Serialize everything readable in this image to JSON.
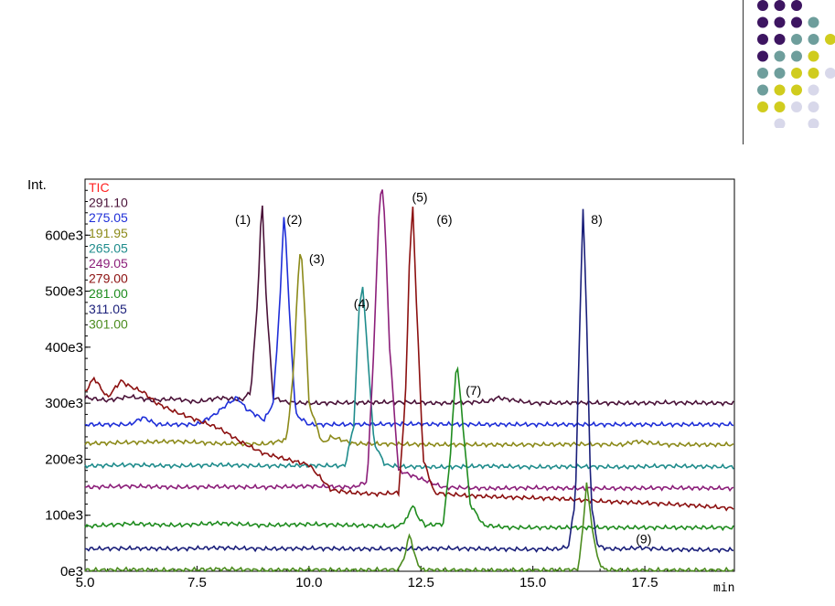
{
  "decoration": {
    "dot_colors": {
      "purple": "#3d1561",
      "teal": "#6e9e9c",
      "yellow": "#d0cc1e",
      "lavender": "#d8d8ea"
    },
    "rule_color": "#333333"
  },
  "chart_data": {
    "type": "line",
    "ylabel": "Int.",
    "xlabel": "min",
    "xlim": [
      5.0,
      19.5
    ],
    "ylim": [
      0,
      700000
    ],
    "x_ticks": [
      "5.0",
      "7.5",
      "10.0",
      "12.5",
      "15.0",
      "17.5"
    ],
    "x_tick_values": [
      5.0,
      7.5,
      10.0,
      12.5,
      15.0,
      17.5
    ],
    "y_ticks": [
      "0e3",
      "100e3",
      "200e3",
      "300e3",
      "400e3",
      "500e3",
      "600e3"
    ],
    "y_tick_values": [
      0,
      100000,
      200000,
      300000,
      400000,
      500000,
      600000
    ],
    "legend_position": "top-left",
    "series": [
      {
        "name": "TIC",
        "color": "#ff2020",
        "x": [],
        "y": []
      },
      {
        "name": "291.10",
        "color": "#4a1238",
        "baseline": 300000,
        "x": [
          5.0,
          5.5,
          6.0,
          6.5,
          7.0,
          7.5,
          8.0,
          8.5,
          8.7,
          8.85,
          8.95,
          9.05,
          9.2,
          9.5,
          10.0,
          11.0,
          12.0,
          13.0,
          14.0,
          14.2,
          15.0,
          16.0,
          17.0,
          18.0,
          19.5
        ],
        "y": [
          310000,
          305000,
          312000,
          305000,
          308000,
          302000,
          310000,
          306000,
          320000,
          480000,
          670000,
          480000,
          310000,
          302000,
          300000,
          301000,
          302000,
          300000,
          303000,
          310000,
          300000,
          301000,
          300000,
          301000,
          300000
        ]
      },
      {
        "name": "275.05",
        "color": "#1f2fd8",
        "baseline": 262000,
        "x": [
          5.0,
          6.0,
          6.3,
          6.6,
          7.5,
          7.9,
          8.2,
          8.4,
          8.6,
          9.0,
          9.2,
          9.35,
          9.45,
          9.55,
          9.7,
          10.0,
          11.0,
          12.0,
          14.0,
          16.0,
          18.0,
          19.5
        ],
        "y": [
          262000,
          262000,
          275000,
          262000,
          262000,
          280000,
          300000,
          310000,
          290000,
          270000,
          300000,
          480000,
          650000,
          480000,
          280000,
          262000,
          262000,
          263000,
          262000,
          262000,
          262000,
          262000
        ]
      },
      {
        "name": "191.95",
        "color": "#8c8a1a",
        "baseline": 226000,
        "x": [
          5.0,
          6.0,
          7.0,
          8.0,
          9.0,
          9.5,
          9.65,
          9.75,
          9.82,
          9.9,
          10.0,
          10.3,
          10.5,
          11.0,
          12.0,
          13.0,
          14.0,
          15.0,
          16.0,
          17.0,
          17.3,
          18.0,
          19.5
        ],
        "y": [
          228000,
          230000,
          232000,
          228000,
          227000,
          235000,
          350000,
          520000,
          580000,
          480000,
          300000,
          228000,
          240000,
          228000,
          227000,
          226000,
          226000,
          226000,
          227000,
          226000,
          232000,
          226000,
          226000
        ]
      },
      {
        "name": "265.05",
        "color": "#1f8c8c",
        "baseline": 186000,
        "x": [
          5.0,
          6.0,
          7.0,
          8.0,
          9.0,
          10.0,
          10.8,
          11.0,
          11.12,
          11.2,
          11.3,
          11.45,
          11.7,
          12.0,
          13.0,
          14.0,
          15.0,
          16.0,
          17.0,
          18.0,
          19.5
        ],
        "y": [
          188000,
          190000,
          188000,
          190000,
          188000,
          189000,
          188000,
          260000,
          470000,
          510000,
          400000,
          230000,
          190000,
          187000,
          186000,
          188000,
          186000,
          187000,
          186000,
          188000,
          186000
        ]
      },
      {
        "name": "249.05",
        "color": "#8c1f7a",
        "baseline": 148000,
        "x": [
          5.0,
          6.0,
          7.0,
          8.0,
          9.0,
          10.0,
          11.0,
          11.3,
          11.45,
          11.55,
          11.62,
          11.7,
          11.8,
          12.0,
          13.0,
          14.0,
          15.0,
          16.0,
          17.0,
          18.0,
          19.5
        ],
        "y": [
          150000,
          152000,
          150000,
          151000,
          150000,
          152000,
          150000,
          160000,
          400000,
          620000,
          700000,
          620000,
          400000,
          180000,
          150000,
          148000,
          149000,
          148000,
          148000,
          149000,
          148000
        ]
      },
      {
        "name": "279.00",
        "color": "#8c1010",
        "baseline": 112000,
        "x": [
          5.0,
          5.2,
          5.5,
          5.8,
          6.0,
          6.3,
          6.6,
          7.0,
          7.5,
          8.0,
          8.5,
          9.0,
          9.5,
          10.0,
          10.5,
          11.0,
          11.5,
          12.0,
          12.15,
          12.25,
          12.32,
          12.4,
          12.55,
          12.8,
          13.5,
          14.5,
          15.5,
          16.5,
          17.5,
          18.5,
          19.5
        ],
        "y": [
          320000,
          345000,
          310000,
          340000,
          330000,
          320000,
          300000,
          285000,
          270000,
          255000,
          230000,
          210000,
          200000,
          190000,
          145000,
          140000,
          138000,
          140000,
          300000,
          570000,
          650000,
          480000,
          200000,
          140000,
          135000,
          132000,
          130000,
          125000,
          122000,
          118000,
          112000
        ]
      },
      {
        "name": "281.00",
        "color": "#1f8c1f",
        "baseline": 78000,
        "x": [
          5.0,
          6.0,
          7.0,
          8.0,
          9.0,
          10.0,
          11.0,
          12.0,
          12.2,
          12.3,
          12.45,
          12.6,
          13.0,
          13.15,
          13.3,
          13.45,
          13.6,
          13.9,
          14.5,
          15.5,
          16.5,
          17.5,
          18.5,
          19.5
        ],
        "y": [
          80000,
          85000,
          82000,
          86000,
          82000,
          84000,
          82000,
          80000,
          95000,
          120000,
          95000,
          82000,
          85000,
          200000,
          380000,
          250000,
          120000,
          82000,
          78000,
          78000,
          78000,
          78000,
          78000,
          78000
        ]
      },
      {
        "name": "311.05",
        "color": "#1a1f7a",
        "baseline": 38000,
        "x": [
          5.0,
          6.0,
          7.0,
          8.0,
          9.0,
          10.0,
          11.0,
          12.0,
          13.0,
          14.0,
          15.0,
          15.6,
          15.8,
          15.95,
          16.05,
          16.12,
          16.2,
          16.3,
          16.45,
          16.7,
          17.0,
          17.4,
          18.0,
          19.5
        ],
        "y": [
          40000,
          41000,
          40000,
          42000,
          40000,
          41000,
          40000,
          40000,
          41000,
          40000,
          39000,
          40000,
          45000,
          130000,
          450000,
          650000,
          450000,
          120000,
          45000,
          40000,
          40000,
          42000,
          39000,
          38000
        ]
      },
      {
        "name": "301.00",
        "color": "#4c8c1f",
        "baseline": 0,
        "x": [
          5.0,
          6.0,
          7.0,
          8.0,
          9.0,
          10.0,
          11.0,
          12.0,
          12.15,
          12.25,
          12.35,
          12.5,
          13.0,
          14.0,
          15.0,
          16.0,
          16.1,
          16.2,
          16.3,
          16.45,
          16.6,
          17.0,
          18.0,
          19.5
        ],
        "y": [
          2000,
          3000,
          2000,
          4000,
          2000,
          3000,
          2000,
          3000,
          30000,
          70000,
          30000,
          3000,
          2000,
          2000,
          2000,
          3000,
          60000,
          160000,
          90000,
          20000,
          3000,
          2000,
          2000,
          2000
        ]
      }
    ],
    "annotations": [
      {
        "text": "(1)",
        "x": 8.35,
        "y": 620000
      },
      {
        "text": "(2)",
        "x": 9.5,
        "y": 620000
      },
      {
        "text": "(3)",
        "x": 10.0,
        "y": 550000
      },
      {
        "text": "(4)",
        "x": 11.0,
        "y": 470000
      },
      {
        "text": "(5)",
        "x": 12.3,
        "y": 660000
      },
      {
        "text": "(6)",
        "x": 12.85,
        "y": 620000
      },
      {
        "text": "(7)",
        "x": 13.5,
        "y": 315000
      },
      {
        "text": "8)",
        "x": 16.3,
        "y": 620000
      },
      {
        "text": "(9)",
        "x": 17.3,
        "y": 50000
      }
    ]
  }
}
